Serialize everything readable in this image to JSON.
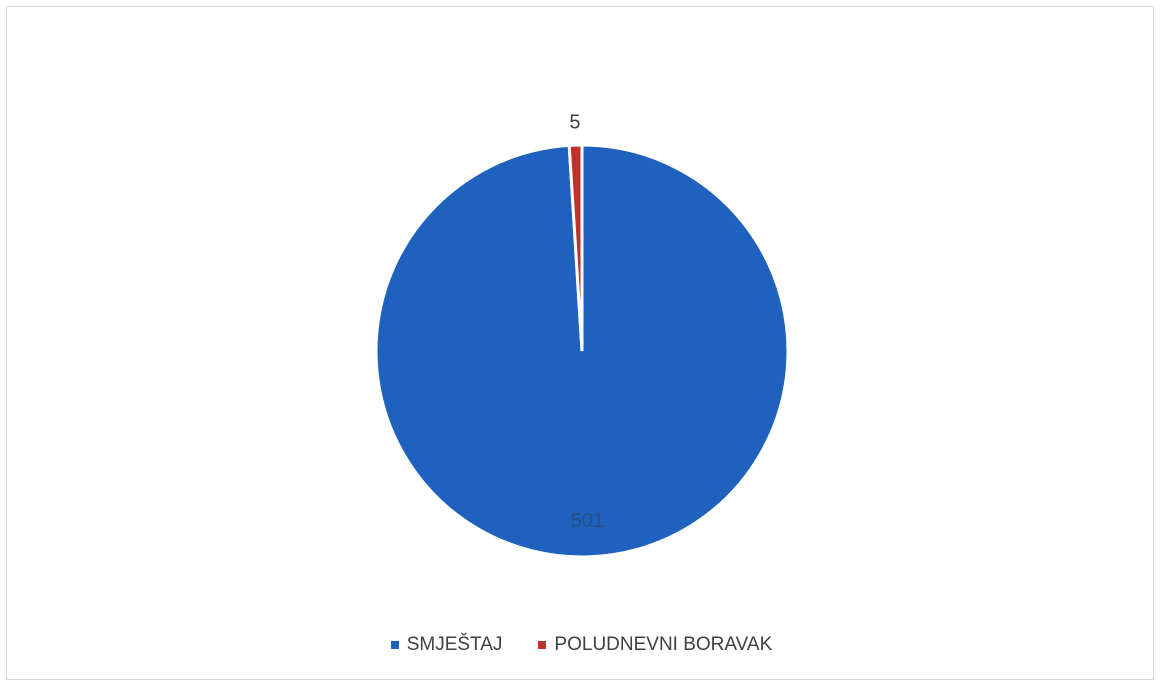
{
  "chart_data": {
    "type": "pie",
    "categories": [
      "SMJEŠTAJ",
      "POLUDNEVNI BORAVAK"
    ],
    "values": [
      501,
      5
    ],
    "colors": [
      "#1f62be",
      "#c0312b"
    ],
    "data_labels": [
      "501",
      "5"
    ],
    "title": "",
    "legend": "bottom-center"
  }
}
